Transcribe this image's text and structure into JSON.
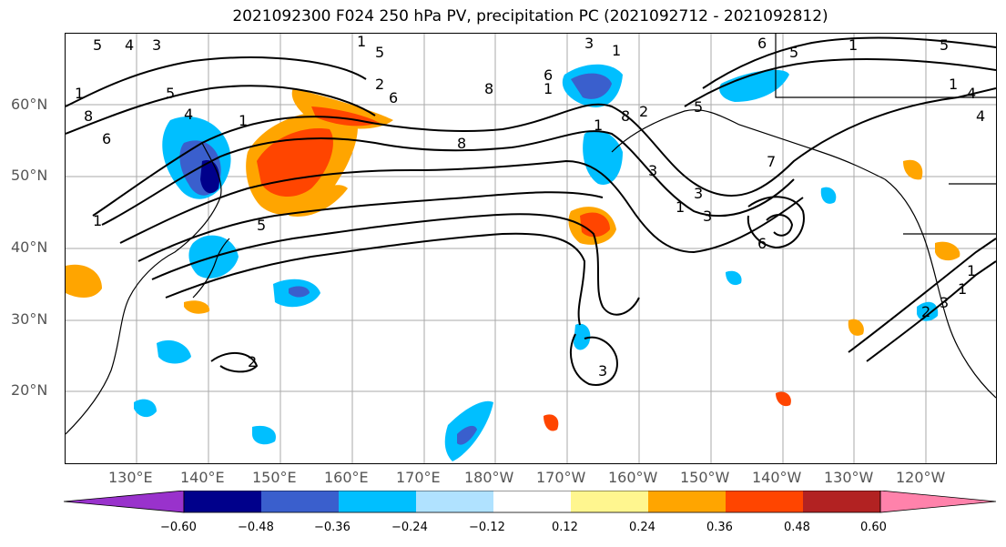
{
  "title": "2021092300 F024 250 hPa PV, precipitation PC (2021092712 - 2021092812)",
  "lat_labels": [
    "60°N",
    "50°N",
    "40°N",
    "30°N",
    "20°N"
  ],
  "lon_labels": [
    "130°E",
    "140°E",
    "150°E",
    "160°E",
    "170°E",
    "180°W",
    "170°W",
    "160°W",
    "150°W",
    "140°W",
    "130°W",
    "120°W"
  ],
  "colorbar": {
    "colors": [
      "#9932cc",
      "#00008b",
      "#3a5fcd",
      "#00bfff",
      "#b0e2ff",
      "#ffffff",
      "#fff68f",
      "#ffa500",
      "#ff4500",
      "#b22222",
      "#ff82ab"
    ],
    "tick_labels": [
      "−0.60",
      "−0.48",
      "−0.36",
      "−0.24",
      "−0.12",
      "0.12",
      "0.24",
      "0.36",
      "0.48",
      "0.60"
    ]
  },
  "contour_labels": [
    "5",
    "4",
    "3",
    "1",
    "8",
    "6",
    "5",
    "4",
    "1",
    "1",
    "5",
    "8",
    "6",
    "2",
    "1",
    "8",
    "1",
    "5",
    "6",
    "3",
    "1",
    "2",
    "3",
    "1",
    "3",
    "1",
    "3",
    "5",
    "8",
    "6",
    "5",
    "7",
    "6",
    "1",
    "5",
    "4",
    "4",
    "1",
    "2",
    "3",
    "1",
    "1",
    "3",
    "2"
  ]
}
